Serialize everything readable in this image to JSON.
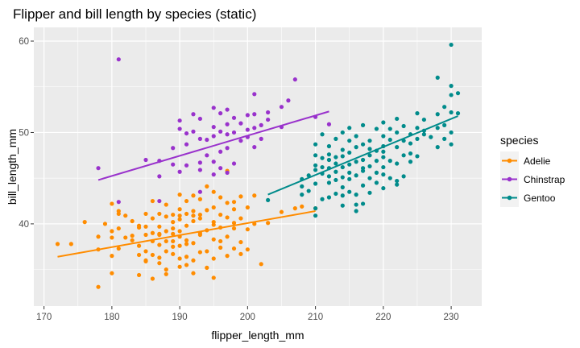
{
  "chart_data": {
    "type": "scatter",
    "title": "Flipper and bill length by species (static)",
    "xlabel": "flipper_length_mm",
    "ylabel": "bill_length_mm",
    "xlim": [
      168.5,
      234.5
    ],
    "ylim": [
      31,
      61.5
    ],
    "xticks": [
      170,
      180,
      190,
      200,
      210,
      220,
      230
    ],
    "yticks": [
      40,
      50,
      60
    ],
    "grid": true,
    "legend": {
      "title": "species",
      "position": "right"
    },
    "series": [
      {
        "name": "Adelie",
        "color": "#ff8c00",
        "trend": {
          "x": [
            172,
            210
          ],
          "y": [
            36.4,
            41.4
          ]
        },
        "points": [
          [
            172,
            37.8
          ],
          [
            174,
            37.8
          ],
          [
            176,
            40.2
          ],
          [
            178,
            37.2
          ],
          [
            178,
            33.1
          ],
          [
            178,
            38.6
          ],
          [
            179,
            40.0
          ],
          [
            180,
            39.2
          ],
          [
            180,
            36.5
          ],
          [
            180,
            34.6
          ],
          [
            180,
            38.5
          ],
          [
            181,
            41.1
          ],
          [
            181,
            39.5
          ],
          [
            181,
            37.3
          ],
          [
            182,
            40.9
          ],
          [
            182,
            38.5
          ],
          [
            183,
            38.2
          ],
          [
            183,
            40.3
          ],
          [
            184,
            34.4
          ],
          [
            184,
            36.6
          ],
          [
            184,
            39.6
          ],
          [
            184,
            37.6
          ],
          [
            185,
            35.9
          ],
          [
            185,
            37.0
          ],
          [
            185,
            38.8
          ],
          [
            185,
            36.0
          ],
          [
            185,
            41.1
          ],
          [
            186,
            34.0
          ],
          [
            186,
            38.1
          ],
          [
            186,
            39.0
          ],
          [
            186,
            36.6
          ],
          [
            186,
            40.6
          ],
          [
            186,
            42.5
          ],
          [
            187,
            35.7
          ],
          [
            187,
            37.7
          ],
          [
            187,
            38.8
          ],
          [
            187,
            39.7
          ],
          [
            187,
            41.1
          ],
          [
            187,
            36.3
          ],
          [
            188,
            34.5
          ],
          [
            188,
            39.2
          ],
          [
            188,
            40.8
          ],
          [
            188,
            38.1
          ],
          [
            188,
            37.0
          ],
          [
            188,
            42.1
          ],
          [
            188,
            35.0
          ],
          [
            189,
            36.7
          ],
          [
            189,
            38.9
          ],
          [
            189,
            40.2
          ],
          [
            189,
            37.5
          ],
          [
            189,
            41.0
          ],
          [
            189,
            39.5
          ],
          [
            190,
            35.3
          ],
          [
            190,
            37.6
          ],
          [
            190,
            39.2
          ],
          [
            190,
            40.9
          ],
          [
            190,
            43.2
          ],
          [
            190,
            36.2
          ],
          [
            190,
            38.6
          ],
          [
            190,
            41.6
          ],
          [
            191,
            35.5
          ],
          [
            191,
            36.4
          ],
          [
            191,
            38.2
          ],
          [
            191,
            39.8
          ],
          [
            191,
            41.1
          ],
          [
            191,
            42.5
          ],
          [
            191,
            37.8
          ],
          [
            192,
            34.6
          ],
          [
            192,
            37.9
          ],
          [
            192,
            40.3
          ],
          [
            192,
            41.4
          ],
          [
            192,
            43.1
          ],
          [
            192,
            36.0
          ],
          [
            193,
            36.9
          ],
          [
            193,
            38.8
          ],
          [
            193,
            40.6
          ],
          [
            193,
            42.7
          ],
          [
            193,
            39.0
          ],
          [
            194,
            35.2
          ],
          [
            194,
            37.0
          ],
          [
            194,
            39.3
          ],
          [
            194,
            41.5
          ],
          [
            194,
            44.1
          ],
          [
            195,
            36.2
          ],
          [
            195,
            38.3
          ],
          [
            195,
            40.2
          ],
          [
            195,
            41.8
          ],
          [
            195,
            43.5
          ],
          [
            195,
            34.1
          ],
          [
            196,
            37.4
          ],
          [
            196,
            39.6
          ],
          [
            196,
            41.0
          ],
          [
            196,
            42.9
          ],
          [
            196,
            38.1
          ],
          [
            197,
            36.5
          ],
          [
            197,
            38.6
          ],
          [
            197,
            40.7
          ],
          [
            197,
            42.3
          ],
          [
            197,
            45.8
          ],
          [
            198,
            37.3
          ],
          [
            198,
            39.5
          ],
          [
            198,
            40.1
          ],
          [
            198,
            41.6
          ],
          [
            198,
            42.4
          ],
          [
            199,
            36.7
          ],
          [
            199,
            38.0
          ],
          [
            199,
            40.6
          ],
          [
            199,
            43.0
          ],
          [
            200,
            37.2
          ],
          [
            200,
            39.4
          ],
          [
            200,
            41.8
          ],
          [
            201,
            40.0
          ],
          [
            201,
            43.1
          ],
          [
            202,
            35.6
          ],
          [
            203,
            40.1
          ],
          [
            205,
            41.3
          ],
          [
            207,
            41.7
          ],
          [
            208,
            41.9
          ],
          [
            210,
            41.7
          ],
          [
            195,
            39.9
          ],
          [
            193,
            41.0
          ],
          [
            192,
            40.9
          ],
          [
            190,
            40.5
          ],
          [
            189,
            38.1
          ],
          [
            187,
            38.9
          ],
          [
            185,
            39.7
          ],
          [
            184,
            39.8
          ],
          [
            181,
            41.4
          ],
          [
            180,
            42.2
          ],
          [
            183,
            38.7
          ]
        ]
      },
      {
        "name": "Chinstrap",
        "color": "#9932cc",
        "trend": {
          "x": [
            178,
            212
          ],
          "y": [
            44.8,
            52.3
          ]
        },
        "points": [
          [
            178,
            46.1
          ],
          [
            181,
            58.0
          ],
          [
            181,
            42.4
          ],
          [
            185,
            47.0
          ],
          [
            187,
            45.2
          ],
          [
            187,
            46.9
          ],
          [
            187,
            42.5
          ],
          [
            189,
            46.5
          ],
          [
            189,
            48.3
          ],
          [
            190,
            45.7
          ],
          [
            190,
            50.4
          ],
          [
            190,
            51.3
          ],
          [
            191,
            46.4
          ],
          [
            191,
            48.7
          ],
          [
            192,
            50.1
          ],
          [
            193,
            43.5
          ],
          [
            193,
            45.9
          ],
          [
            193,
            46.7
          ],
          [
            193,
            49.3
          ],
          [
            193,
            51.5
          ],
          [
            194,
            47.5
          ],
          [
            194,
            49.2
          ],
          [
            195,
            45.4
          ],
          [
            195,
            46.8
          ],
          [
            195,
            49.6
          ],
          [
            195,
            50.6
          ],
          [
            195,
            52.7
          ],
          [
            196,
            46.1
          ],
          [
            196,
            47.9
          ],
          [
            196,
            50.1
          ],
          [
            196,
            52.1
          ],
          [
            197,
            45.6
          ],
          [
            197,
            48.3
          ],
          [
            197,
            49.8
          ],
          [
            197,
            50.9
          ],
          [
            197,
            52.5
          ],
          [
            198,
            46.6
          ],
          [
            198,
            50.0
          ],
          [
            198,
            51.6
          ],
          [
            199,
            49.1
          ],
          [
            199,
            51.0
          ],
          [
            200,
            49.5
          ],
          [
            200,
            50.3
          ],
          [
            200,
            51.9
          ],
          [
            201,
            48.4
          ],
          [
            201,
            50.5
          ],
          [
            201,
            52.0
          ],
          [
            201,
            54.2
          ],
          [
            202,
            49.3
          ],
          [
            202,
            50.8
          ],
          [
            203,
            51.4
          ],
          [
            203,
            52.2
          ],
          [
            205,
            50.6
          ],
          [
            205,
            52.8
          ],
          [
            206,
            53.5
          ],
          [
            207,
            55.8
          ],
          [
            210,
            51.7
          ],
          [
            212,
            50.9
          ],
          [
            191,
            49.9
          ],
          [
            192,
            52.0
          ]
        ]
      },
      {
        "name": "Gentoo",
        "color": "#008b8b",
        "trend": {
          "x": [
            203,
            231
          ],
          "y": [
            43.2,
            51.8
          ]
        },
        "points": [
          [
            203,
            42.6
          ],
          [
            208,
            43.2
          ],
          [
            208,
            44.1
          ],
          [
            208,
            44.9
          ],
          [
            209,
            45.3
          ],
          [
            209,
            43.6
          ],
          [
            210,
            40.9
          ],
          [
            210,
            44.4
          ],
          [
            210,
            45.9
          ],
          [
            210,
            46.4
          ],
          [
            210,
            47.5
          ],
          [
            210,
            48.7
          ],
          [
            210,
            41.7
          ],
          [
            211,
            42.7
          ],
          [
            211,
            45.5
          ],
          [
            211,
            46.2
          ],
          [
            211,
            47.2
          ],
          [
            211,
            49.8
          ],
          [
            212,
            42.9
          ],
          [
            212,
            44.5
          ],
          [
            212,
            45.2
          ],
          [
            212,
            46.1
          ],
          [
            212,
            47.6
          ],
          [
            212,
            48.5
          ],
          [
            213,
            43.3
          ],
          [
            213,
            44.8
          ],
          [
            213,
            45.7
          ],
          [
            213,
            46.6
          ],
          [
            213,
            47.3
          ],
          [
            213,
            49.3
          ],
          [
            214,
            42.0
          ],
          [
            214,
            44.0
          ],
          [
            214,
            45.1
          ],
          [
            214,
            46.2
          ],
          [
            214,
            47.4
          ],
          [
            214,
            48.1
          ],
          [
            214,
            50.0
          ],
          [
            215,
            43.5
          ],
          [
            215,
            44.9
          ],
          [
            215,
            45.6
          ],
          [
            215,
            46.5
          ],
          [
            215,
            47.8
          ],
          [
            215,
            49.1
          ],
          [
            215,
            50.5
          ],
          [
            216,
            41.4
          ],
          [
            216,
            43.2
          ],
          [
            216,
            45.3
          ],
          [
            216,
            46.8
          ],
          [
            216,
            48.4
          ],
          [
            216,
            49.6
          ],
          [
            217,
            42.2
          ],
          [
            217,
            44.2
          ],
          [
            217,
            45.8
          ],
          [
            217,
            47.0
          ],
          [
            217,
            48.7
          ],
          [
            217,
            50.8
          ],
          [
            218,
            43.4
          ],
          [
            218,
            45.0
          ],
          [
            218,
            46.3
          ],
          [
            218,
            47.5
          ],
          [
            218,
            49.1
          ],
          [
            219,
            44.5
          ],
          [
            219,
            45.6
          ],
          [
            219,
            46.9
          ],
          [
            219,
            48.0
          ],
          [
            219,
            50.4
          ],
          [
            220,
            43.9
          ],
          [
            220,
            45.4
          ],
          [
            220,
            46.2
          ],
          [
            220,
            47.3
          ],
          [
            220,
            48.5
          ],
          [
            220,
            49.6
          ],
          [
            220,
            51.1
          ],
          [
            221,
            45.0
          ],
          [
            221,
            46.9
          ],
          [
            221,
            49.2
          ],
          [
            221,
            50.4
          ],
          [
            222,
            44.7
          ],
          [
            222,
            46.6
          ],
          [
            222,
            48.4
          ],
          [
            222,
            50.0
          ],
          [
            222,
            51.5
          ],
          [
            223,
            45.2
          ],
          [
            223,
            47.5
          ],
          [
            223,
            49.1
          ],
          [
            223,
            50.7
          ],
          [
            224,
            46.8
          ],
          [
            224,
            48.8
          ],
          [
            224,
            49.8
          ],
          [
            225,
            47.4
          ],
          [
            225,
            49.3
          ],
          [
            225,
            50.5
          ],
          [
            225,
            52.1
          ],
          [
            226,
            50.2
          ],
          [
            226,
            51.4
          ],
          [
            227,
            49.5
          ],
          [
            228,
            50.5
          ],
          [
            228,
            52.0
          ],
          [
            228,
            56.0
          ],
          [
            229,
            49.3
          ],
          [
            229,
            50.8
          ],
          [
            229,
            52.8
          ],
          [
            230,
            48.7
          ],
          [
            230,
            50.0
          ],
          [
            230,
            52.2
          ],
          [
            230,
            54.1
          ],
          [
            230,
            55.1
          ],
          [
            230,
            59.6
          ],
          [
            231,
            52.1
          ],
          [
            231,
            54.3
          ],
          [
            216,
            42.1
          ],
          [
            212,
            47.0
          ],
          [
            214,
            43.1
          ],
          [
            218,
            48.2
          ],
          [
            220,
            47.9
          ],
          [
            222,
            44.3
          ],
          [
            224,
            47.7
          ],
          [
            226,
            49.8
          ],
          [
            228,
            48.4
          ],
          [
            217,
            46.1
          ]
        ]
      }
    ]
  }
}
